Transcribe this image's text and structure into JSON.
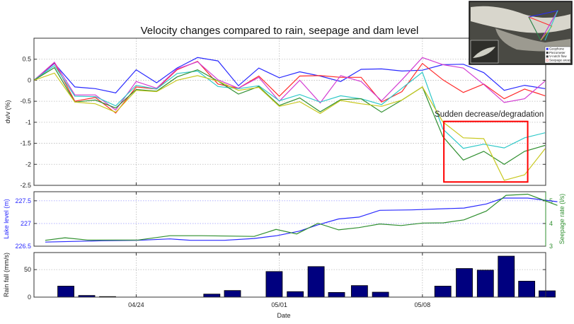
{
  "chart_data": [
    {
      "type": "line",
      "title": "Velocity changes compared to rain, seepage and dam level",
      "xlabel": "",
      "ylabel": "dv/v (%)",
      "ylim": [
        -2.5,
        1.0
      ],
      "yticks": [
        0.5,
        0,
        -0.5,
        -1,
        -1.5,
        -2,
        -2.5
      ],
      "ytick_labels": [
        "0.5",
        "0",
        "-0.5",
        "-1",
        "-1.5",
        "-2",
        "-2.5"
      ],
      "x_unit": "days",
      "xlim": [
        0,
        25.03
      ],
      "grid": true,
      "x": [
        0,
        1,
        2,
        3,
        4,
        5,
        6,
        7,
        8,
        9,
        10,
        11,
        12,
        13,
        14,
        15,
        16,
        17,
        18,
        19,
        20,
        21,
        22,
        23,
        24,
        25
      ],
      "series": [
        {
          "name": "blue",
          "color": "#2a2aff",
          "values": [
            0,
            0.4,
            -0.16,
            -0.2,
            -0.3,
            0.25,
            -0.06,
            0.29,
            0.54,
            0.46,
            -0.13,
            0.29,
            0.06,
            0.2,
            0.1,
            -0.03,
            0.26,
            0.27,
            0.22,
            0.24,
            0.37,
            0.38,
            0.18,
            -0.24,
            -0.12,
            -0.2
          ]
        },
        {
          "name": "red",
          "color": "#ff2a2a",
          "values": [
            0,
            0.42,
            -0.5,
            -0.41,
            -0.78,
            -0.16,
            -0.21,
            0.25,
            0.45,
            -0.09,
            -0.19,
            0.1,
            -0.38,
            0.1,
            0.11,
            0.07,
            0.07,
            -0.52,
            -0.27,
            0.4,
            0.01,
            -0.29,
            -0.09,
            -0.44,
            -0.21,
            -0.37
          ]
        },
        {
          "name": "magenta",
          "color": "#d23cd2",
          "values": [
            0,
            0.43,
            -0.35,
            -0.35,
            -0.71,
            -0.03,
            -0.19,
            0.27,
            0.44,
            0.01,
            -0.19,
            0.07,
            -0.5,
            0,
            -0.54,
            0.11,
            -0.03,
            -0.49,
            0.01,
            0.54,
            0.37,
            0.29,
            -0.1,
            -0.53,
            -0.44,
            -0.02
          ]
        },
        {
          "name": "cyan",
          "color": "#2ec8c8",
          "values": [
            0,
            0.35,
            -0.38,
            -0.39,
            -0.61,
            -0.12,
            -0.21,
            0.16,
            0.22,
            -0.15,
            -0.2,
            -0.13,
            -0.49,
            -0.34,
            -0.52,
            -0.37,
            -0.44,
            -0.58,
            -0.19,
            0.19,
            -1.16,
            -1.62,
            -1.52,
            -1.61,
            -1.37,
            -1.25
          ]
        },
        {
          "name": "green",
          "color": "#2f8f2f",
          "values": [
            0,
            0.3,
            -0.52,
            -0.47,
            -0.66,
            -0.22,
            -0.26,
            0.08,
            0.25,
            -0.02,
            -0.33,
            -0.15,
            -0.6,
            -0.42,
            -0.75,
            -0.46,
            -0.44,
            -0.76,
            -0.47,
            -0.16,
            -1.34,
            -1.9,
            -1.69,
            -2.0,
            -1.69,
            -1.55
          ]
        },
        {
          "name": "yellow",
          "color": "#c8c81e",
          "values": [
            0,
            0.17,
            -0.52,
            -0.56,
            -0.76,
            -0.24,
            -0.27,
            0,
            0.11,
            -0.02,
            -0.24,
            -0.17,
            -0.62,
            -0.51,
            -0.79,
            -0.48,
            -0.56,
            -0.62,
            -0.47,
            -0.16,
            -0.99,
            -1.37,
            -1.39,
            -2.38,
            -2.25,
            -1.63
          ]
        }
      ],
      "annotation": {
        "text": "Sudden decrease/degradation",
        "box_color": "#ff0000",
        "box_x": [
          20.05,
          24.15
        ],
        "box_y": [
          -0.98,
          -2.42
        ]
      }
    },
    {
      "type": "line",
      "ylabel": "Lake level (m)",
      "ylabel_color": "#2a2aff",
      "ylim": [
        226.5,
        227.7
      ],
      "yticks": [
        227.5,
        227,
        226.5
      ],
      "ytick_labels": [
        "227.5",
        "227",
        "226.5"
      ],
      "y2label": "Seepage rate (l/s)",
      "y2label_color": "#2f8f2f",
      "y2lim": [
        3,
        5.4
      ],
      "y2ticks": [
        5,
        4,
        3
      ],
      "y2tick_labels": [
        "5",
        "4",
        "3"
      ],
      "series": [
        {
          "name": "Lake level",
          "axis": "left",
          "color": "#2a2aff",
          "x": [
            0.55,
            3.35,
            5.09,
            6.65,
            7.66,
            9.31,
            10.77,
            11.87,
            12.97,
            13.89,
            14.9,
            15.9,
            16.91,
            18.47,
            21.03,
            22.13,
            22.96,
            24.15,
            25.6
          ],
          "values": [
            226.59,
            226.62,
            226.63,
            226.66,
            226.63,
            226.63,
            226.67,
            226.73,
            226.83,
            226.97,
            227.1,
            227.14,
            227.29,
            227.3,
            227.34,
            227.43,
            227.56,
            227.56,
            227.48
          ]
        },
        {
          "name": "Seepage rate",
          "axis": "right",
          "color": "#2f8f2f",
          "x": [
            0.55,
            1.52,
            2.62,
            5.09,
            6.65,
            8.21,
            10.77,
            11.84,
            12.85,
            13.89,
            14.9,
            15.9,
            16.91,
            17.96,
            19.02,
            20.03,
            21.03,
            22.13,
            23.09,
            24.15,
            25.6
          ],
          "values": [
            3.26,
            3.37,
            3.27,
            3.27,
            3.46,
            3.46,
            3.43,
            3.74,
            3.54,
            4.01,
            3.72,
            3.82,
            3.98,
            3.91,
            4.02,
            4.03,
            4.16,
            4.55,
            5.24,
            5.29,
            4.8
          ]
        }
      ]
    },
    {
      "type": "bar",
      "ylabel": "Rain fall (mm/s)",
      "xlabel": "Date",
      "ylim": [
        0,
        81
      ],
      "yticks": [
        0,
        50
      ],
      "ytick_labels": [
        "0",
        "50"
      ],
      "xticks": [
        5,
        12,
        19
      ],
      "xtick_labels": [
        "04/24",
        "05/01",
        "05/08"
      ],
      "bar_color": "#00007f",
      "x": [
        1.56,
        2.58,
        3.6,
        8.7,
        9.71,
        11.75,
        12.78,
        13.8,
        14.8,
        15.92,
        16.95,
        20.0,
        21.05,
        22.08,
        23.1,
        24.1,
        25.1
      ],
      "values": [
        20,
        3,
        1,
        5.5,
        12,
        46.5,
        10,
        55.5,
        8.5,
        21,
        9,
        20,
        52,
        49,
        74.5,
        29,
        11.5
      ]
    }
  ],
  "inset_map": {
    "legend": [
      "Geophone",
      "Piezometer",
      "V-notch flow",
      "Seepage areas"
    ]
  }
}
